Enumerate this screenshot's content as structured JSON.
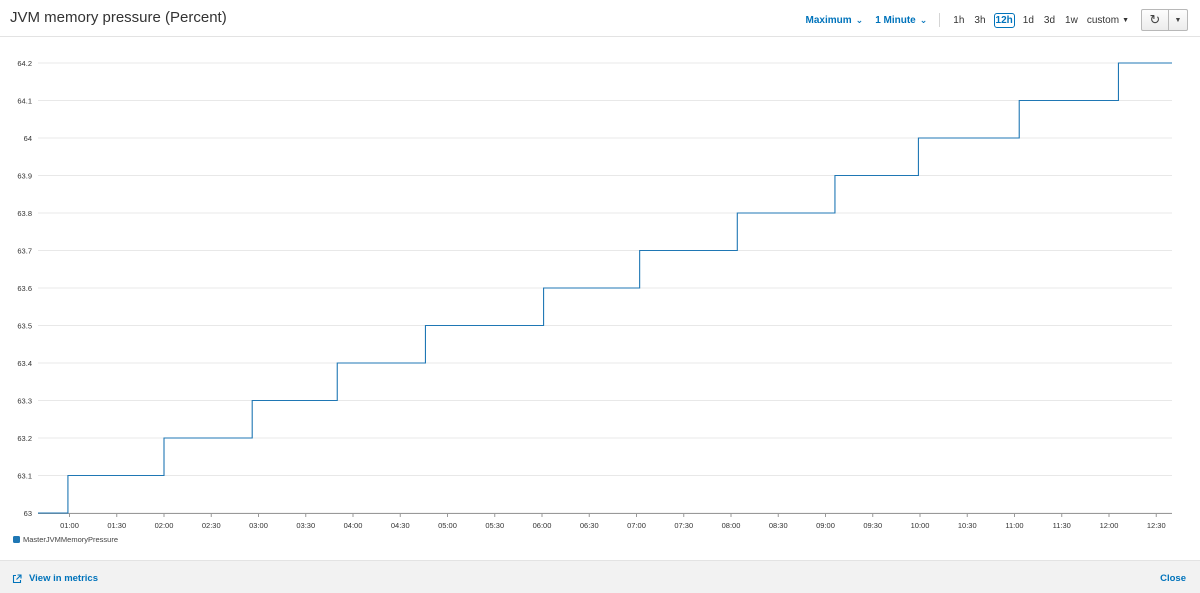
{
  "header": {
    "title": "JVM memory pressure (Percent)",
    "statistic": "Maximum",
    "period": "1 Minute",
    "ranges": [
      "1h",
      "3h",
      "12h",
      "1d",
      "3d",
      "1w"
    ],
    "active_range": "12h",
    "custom_label": "custom",
    "refresh_icon": "refresh-icon",
    "menu_icon": "caret-down-icon"
  },
  "footer": {
    "view_in_metrics": "View in metrics",
    "close": "Close",
    "link_icon": "external-link-icon"
  },
  "colors": {
    "series": "#1f77b4",
    "link": "#0073bb",
    "grid": "#e8e8e8"
  },
  "chart_data": {
    "type": "line",
    "step": true,
    "title": "JVM memory pressure (Percent)",
    "xlabel": "",
    "ylabel": "",
    "ylim": [
      63,
      64.2
    ],
    "yticks": [
      "63",
      "63.1",
      "63.2",
      "63.3",
      "63.4",
      "63.5",
      "63.6",
      "63.7",
      "63.8",
      "63.9",
      "64",
      "64.1",
      "64.2"
    ],
    "xlim": [
      "00:40",
      "12:40"
    ],
    "xticks": [
      "01:00",
      "01:30",
      "02:00",
      "02:30",
      "03:00",
      "03:30",
      "04:00",
      "04:30",
      "05:00",
      "05:30",
      "06:00",
      "06:30",
      "07:00",
      "07:30",
      "08:00",
      "08:30",
      "09:00",
      "09:30",
      "10:00",
      "10:30",
      "11:00",
      "11:30",
      "12:00",
      "12:30"
    ],
    "grid": true,
    "legend": "bottom-left",
    "series": [
      {
        "name": "MasterJVMMemoryPressure",
        "x": [
          "00:40",
          "00:59",
          "02:00",
          "02:56",
          "03:50",
          "04:46",
          "06:01",
          "07:02",
          "08:04",
          "09:06",
          "09:59",
          "11:03",
          "12:06",
          "12:40"
        ],
        "values": [
          63.0,
          63.1,
          63.2,
          63.3,
          63.4,
          63.5,
          63.6,
          63.7,
          63.8,
          63.9,
          64.0,
          64.1,
          64.2,
          64.2
        ]
      }
    ]
  }
}
